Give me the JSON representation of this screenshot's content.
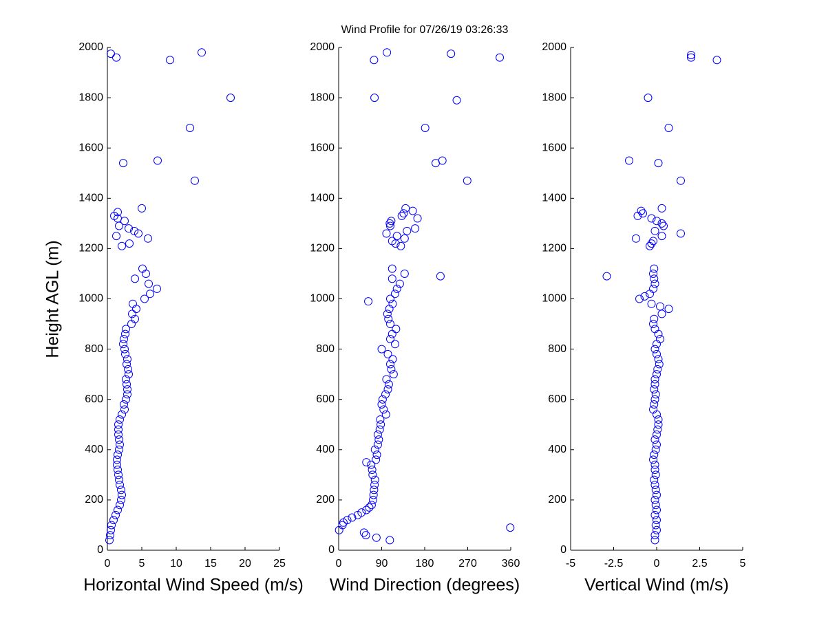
{
  "chart_data": [
    {
      "type": "scatter",
      "x_label": "Horizontal Wind Speed (m/s)",
      "y_label": "Height AGL (m)",
      "color": "#0000ff",
      "xlim": [
        0,
        25
      ],
      "xticks": [
        0,
        5,
        10,
        15,
        20,
        25
      ],
      "ylim": [
        0,
        2000
      ],
      "yticks": [
        0,
        200,
        400,
        600,
        800,
        1000,
        1200,
        1400,
        1600,
        1800,
        2000
      ],
      "x": [
        0.3,
        0.4,
        0.5,
        0.6,
        0.9,
        1.2,
        1.5,
        1.8,
        2.0,
        2.1,
        2.0,
        1.8,
        1.7,
        1.6,
        1.5,
        1.4,
        1.4,
        1.5,
        1.7,
        1.8,
        1.7,
        1.6,
        1.6,
        1.6,
        1.8,
        2.1,
        2.5,
        2.4,
        2.7,
        2.9,
        2.9,
        2.8,
        2.7,
        3.1,
        3.0,
        2.8,
        2.9,
        2.6,
        2.5,
        2.3,
        2.4,
        2.6,
        2.7,
        3.5,
        4.0,
        3.6,
        4.2,
        3.7,
        5.4,
        6.2,
        7.2,
        6.0,
        4.0,
        5.6,
        5.1,
        2.1,
        3.2,
        5.9,
        1.3,
        4.5,
        3.9,
        3.1,
        1.7,
        2.5,
        1.5,
        1.0,
        1.5,
        5.0,
        12.7,
        2.3,
        7.3,
        12.0,
        17.9,
        9.1,
        1.3,
        0.5,
        13.7
      ],
      "y": [
        40,
        60,
        80,
        100,
        120,
        140,
        160,
        180,
        200,
        220,
        240,
        260,
        280,
        300,
        320,
        340,
        360,
        380,
        400,
        420,
        440,
        460,
        480,
        500,
        520,
        540,
        560,
        580,
        600,
        620,
        640,
        660,
        680,
        700,
        720,
        740,
        760,
        780,
        800,
        820,
        840,
        860,
        880,
        900,
        920,
        940,
        960,
        980,
        1000,
        1020,
        1040,
        1060,
        1080,
        1100,
        1120,
        1210,
        1220,
        1240,
        1250,
        1260,
        1270,
        1280,
        1290,
        1310,
        1320,
        1330,
        1345,
        1360,
        1470,
        1540,
        1550,
        1680,
        1800,
        1950,
        1960,
        1975,
        1980
      ]
    },
    {
      "type": "scatter",
      "title": "Wind Profile for  07/26/19 03:26:33",
      "x_label": "Wind Direction (degrees)",
      "color": "#0000ff",
      "xlim": [
        0,
        360
      ],
      "xticks": [
        0,
        90,
        180,
        270,
        360
      ],
      "ylim": [
        0,
        2000
      ],
      "yticks": [
        0,
        200,
        400,
        600,
        800,
        1000,
        1200,
        1400,
        1600,
        1800,
        2000
      ],
      "x": [
        107,
        79,
        57,
        53,
        1,
        359,
        8,
        10,
        18,
        28,
        40,
        48,
        58,
        64,
        69,
        72,
        73,
        74,
        75,
        76,
        71,
        70,
        68,
        58,
        78,
        80,
        76,
        82,
        84,
        82,
        86,
        88,
        87,
        99,
        94,
        90,
        92,
        98,
        103,
        105,
        100,
        115,
        110,
        108,
        113,
        103,
        90,
        118,
        108,
        112,
        120,
        108,
        104,
        102,
        106,
        113,
        62,
        108,
        118,
        122,
        128,
        112,
        213,
        138,
        112,
        130,
        119,
        112,
        138,
        122,
        100,
        143,
        160,
        108,
        107,
        110,
        165,
        132,
        136,
        155,
        140,
        269,
        203,
        217,
        181,
        247,
        75,
        74,
        337,
        235,
        101
      ],
      "y": [
        40,
        50,
        60,
        70,
        80,
        90,
        100,
        110,
        120,
        130,
        140,
        150,
        160,
        170,
        180,
        200,
        220,
        240,
        260,
        280,
        300,
        320,
        340,
        350,
        360,
        380,
        400,
        420,
        440,
        460,
        480,
        500,
        520,
        540,
        560,
        580,
        600,
        620,
        640,
        660,
        680,
        700,
        720,
        740,
        760,
        780,
        800,
        820,
        840,
        860,
        880,
        900,
        920,
        940,
        960,
        980,
        990,
        1000,
        1020,
        1040,
        1060,
        1080,
        1090,
        1100,
        1120,
        1210,
        1220,
        1230,
        1240,
        1250,
        1260,
        1270,
        1280,
        1290,
        1300,
        1310,
        1320,
        1330,
        1340,
        1350,
        1360,
        1470,
        1540,
        1550,
        1680,
        1790,
        1800,
        1950,
        1960,
        1975,
        1980
      ]
    },
    {
      "type": "scatter",
      "x_label": "Vertical Wind (m/s)",
      "color": "#0000ff",
      "xlim": [
        -5,
        5
      ],
      "xticks": [
        -5,
        -2.5,
        0,
        2.5,
        5
      ],
      "ylim": [
        0,
        2000
      ],
      "yticks": [
        0,
        200,
        400,
        600,
        800,
        1000,
        1200,
        1400,
        1600,
        1800,
        2000
      ],
      "x": [
        -0.1,
        -0.1,
        0,
        -0.05,
        0,
        -0.1,
        0,
        -0.05,
        -0.1,
        0,
        -0.05,
        -0.1,
        -0.15,
        -0.05,
        -0.1,
        -0.1,
        -0.2,
        -0.15,
        -0.05,
        0,
        -0.1,
        0,
        0.05,
        0.1,
        0.1,
        0,
        -0.2,
        -0.15,
        -0.1,
        -0.05,
        -0.15,
        -0.1,
        -0.1,
        0,
        0.05,
        0.15,
        0.1,
        0,
        -0.1,
        0,
        0.2,
        0.1,
        -0.1,
        -0.2,
        -0.15,
        0.3,
        0.7,
        0.2,
        -0.3,
        -1.0,
        -0.7,
        -0.4,
        -0.2,
        -0.1,
        -0.15,
        -2.9,
        -0.2,
        -0.15,
        -0.4,
        -0.3,
        -0.2,
        -1.2,
        0.3,
        1.4,
        -0.1,
        0.4,
        0.3,
        0,
        -0.3,
        -1.1,
        -0.8,
        -0.9,
        0.3,
        1.4,
        0.1,
        -1.6,
        0.7,
        -0.5,
        3.5,
        2.0,
        2.0
      ],
      "y": [
        40,
        60,
        80,
        100,
        120,
        140,
        160,
        180,
        200,
        220,
        240,
        260,
        280,
        300,
        320,
        340,
        360,
        380,
        400,
        420,
        440,
        460,
        480,
        500,
        520,
        540,
        560,
        580,
        600,
        620,
        640,
        660,
        680,
        700,
        720,
        740,
        760,
        780,
        800,
        820,
        840,
        860,
        880,
        900,
        920,
        940,
        960,
        970,
        980,
        1000,
        1010,
        1020,
        1040,
        1060,
        1080,
        1090,
        1100,
        1120,
        1210,
        1220,
        1230,
        1240,
        1250,
        1260,
        1270,
        1290,
        1300,
        1310,
        1320,
        1330,
        1340,
        1350,
        1360,
        1470,
        1540,
        1550,
        1680,
        1800,
        1950,
        1960,
        1970
      ]
    }
  ]
}
